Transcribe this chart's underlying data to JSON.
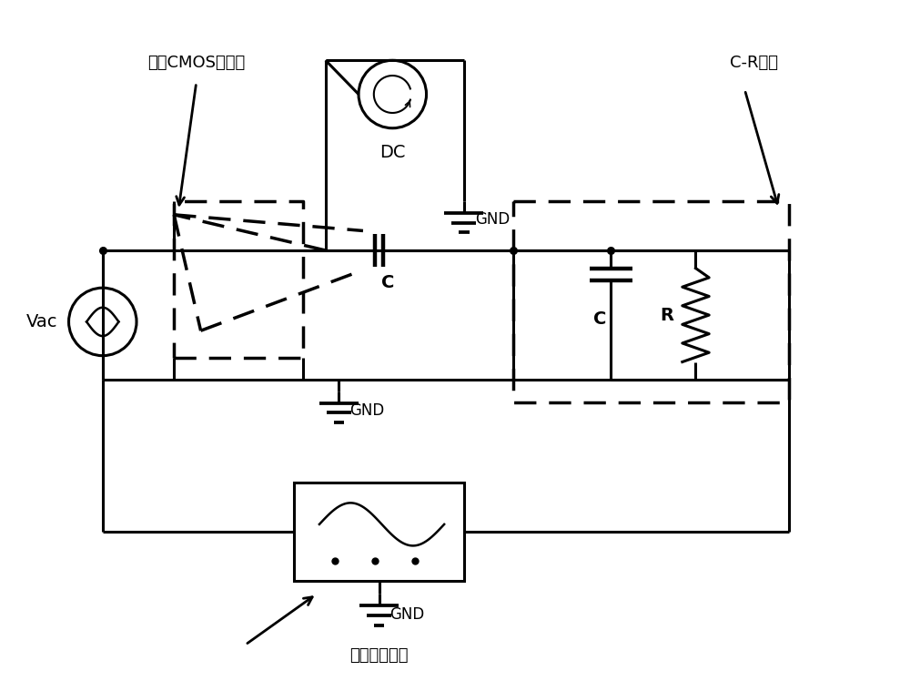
{
  "background_color": "#ffffff",
  "line_color": "#000000",
  "lw": 2.2,
  "dlw": 2.5,
  "figw": 9.89,
  "figh": 7.48,
  "labels": {
    "vac": "Vac",
    "dc": "DC",
    "gnd": "GND",
    "cap": "C",
    "res": "R",
    "coupling": "C",
    "inverter": "待测CMOS反相器",
    "scope": "双通道示波器",
    "crload": "C-R负载"
  }
}
